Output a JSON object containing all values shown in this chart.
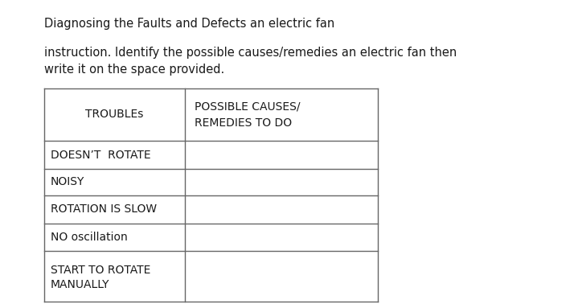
{
  "title": "Diagnosing the Faults and Defects an electric fan",
  "instruction_line1": "instruction. Identify the possible causes/remedies an electric fan then",
  "instruction_line2": "write it on the space provided.",
  "col1_header": "TROUBLEs",
  "col2_header_line1": "POSSIBLE CAUSES/",
  "col2_header_line2": "REMEDIES TO DO",
  "rows": [
    "DOESN’T  ROTATE",
    "NOISY",
    "ROTATION IS SLOW",
    "NO oscillation",
    "START TO ROTATE\nMANUALLY"
  ],
  "background_color": "#ffffff",
  "text_color": "#1a1a1a",
  "table_line_color": "#666666",
  "title_fontsize": 10.5,
  "instruction_fontsize": 10.5,
  "header_fontsize": 10,
  "row_fontsize": 10
}
